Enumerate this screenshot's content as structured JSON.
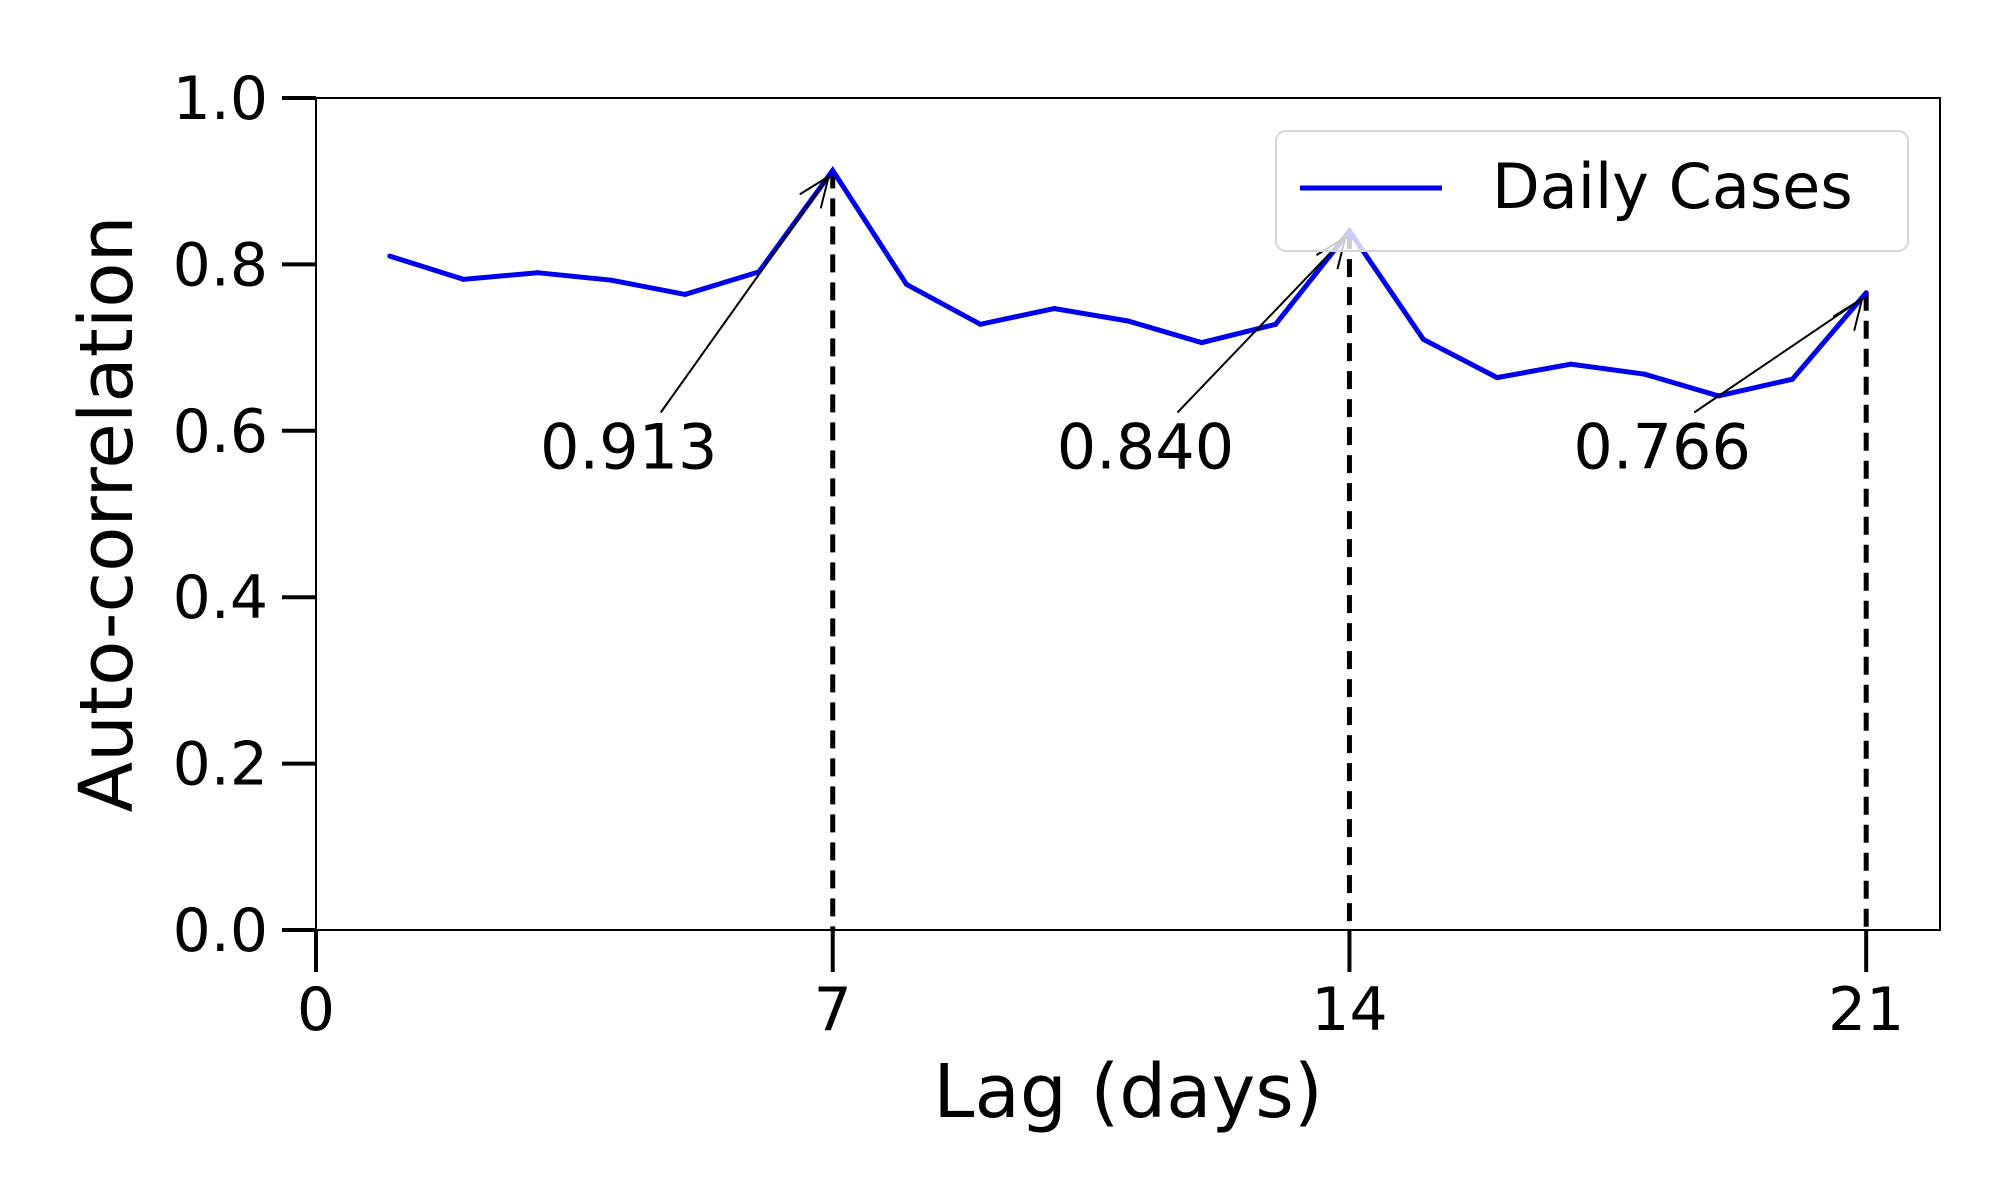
{
  "chart_data": {
    "type": "line",
    "title": "",
    "xlabel": "Lag (days)",
    "ylabel": "Auto-correlation",
    "xlim": [
      0,
      22
    ],
    "ylim": [
      0.0,
      1.0
    ],
    "xticks": [
      0,
      7,
      14,
      21
    ],
    "yticks": [
      0.0,
      0.2,
      0.4,
      0.6,
      0.8,
      1.0
    ],
    "xtick_labels": [
      "0",
      "7",
      "14",
      "21"
    ],
    "ytick_labels": [
      "0.0",
      "0.2",
      "0.4",
      "0.6",
      "0.8",
      "1.0"
    ],
    "grid": false,
    "legend_position": "top-right",
    "series": [
      {
        "name": "Daily Cases",
        "color": "#0000ee",
        "x": [
          1,
          2,
          3,
          4,
          5,
          6,
          7,
          8,
          9,
          10,
          11,
          12,
          13,
          14,
          15,
          16,
          17,
          18,
          19,
          20,
          21
        ],
        "values": [
          0.81,
          0.782,
          0.79,
          0.781,
          0.764,
          0.791,
          0.913,
          0.776,
          0.728,
          0.747,
          0.732,
          0.706,
          0.728,
          0.84,
          0.71,
          0.664,
          0.68,
          0.668,
          0.642,
          0.662,
          0.766
        ]
      }
    ],
    "reference_lines": [
      {
        "x": 7,
        "style": "dashed",
        "color": "#000000"
      },
      {
        "x": 14,
        "style": "dashed",
        "color": "#000000"
      },
      {
        "x": 21,
        "style": "dashed",
        "color": "#000000"
      }
    ],
    "annotations": [
      {
        "text": "0.913",
        "x": 7,
        "y": 0.913
      },
      {
        "text": "0.840",
        "x": 14,
        "y": 0.84
      },
      {
        "text": "0.766",
        "x": 21,
        "y": 0.766
      }
    ]
  }
}
